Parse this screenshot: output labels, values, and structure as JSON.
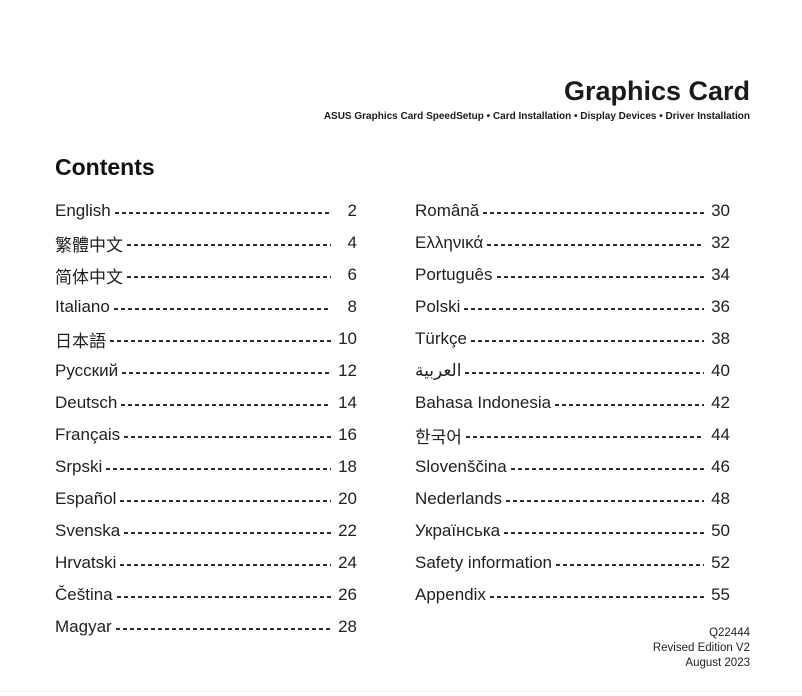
{
  "header": {
    "title": "Graphics Card",
    "subtitle": "ASUS Graphics Card SpeedSetup • Card Installation • Display Devices • Driver Installation"
  },
  "contents": {
    "heading": "Contents",
    "left": [
      {
        "label": "English",
        "page": "2"
      },
      {
        "label": "繁體中文",
        "page": "4"
      },
      {
        "label": "简体中文",
        "page": "6"
      },
      {
        "label": "Italiano",
        "page": "8"
      },
      {
        "label": "日本語",
        "page": "10"
      },
      {
        "label": "Русский",
        "page": "12"
      },
      {
        "label": "Deutsch",
        "page": "14"
      },
      {
        "label": "Français",
        "page": "16"
      },
      {
        "label": "Srpski",
        "page": "18"
      },
      {
        "label": "Español",
        "page": "20"
      },
      {
        "label": "Svenska",
        "page": "22"
      },
      {
        "label": "Hrvatski",
        "page": "24"
      },
      {
        "label": "Čeština",
        "page": "26"
      },
      {
        "label": "Magyar",
        "page": "28"
      }
    ],
    "right": [
      {
        "label": "Română",
        "page": "30"
      },
      {
        "label": "Ελληνικά",
        "page": "32"
      },
      {
        "label": "Português",
        "page": "34"
      },
      {
        "label": "Polski",
        "page": "36"
      },
      {
        "label": "Türkçe",
        "page": "38"
      },
      {
        "label": "العربية",
        "page": "40"
      },
      {
        "label": "Bahasa Indonesia",
        "page": "42"
      },
      {
        "label": "한국어",
        "page": "44"
      },
      {
        "label": "Slovenščina",
        "page": "46"
      },
      {
        "label": "Nederlands",
        "page": "48"
      },
      {
        "label": "Українська",
        "page": "50"
      },
      {
        "label": "Safety information",
        "page": "52"
      },
      {
        "label": "Appendix",
        "page": "55"
      }
    ]
  },
  "footer": {
    "part_number": "Q22444",
    "edition": "Revised Edition V2",
    "date": "August 2023"
  }
}
